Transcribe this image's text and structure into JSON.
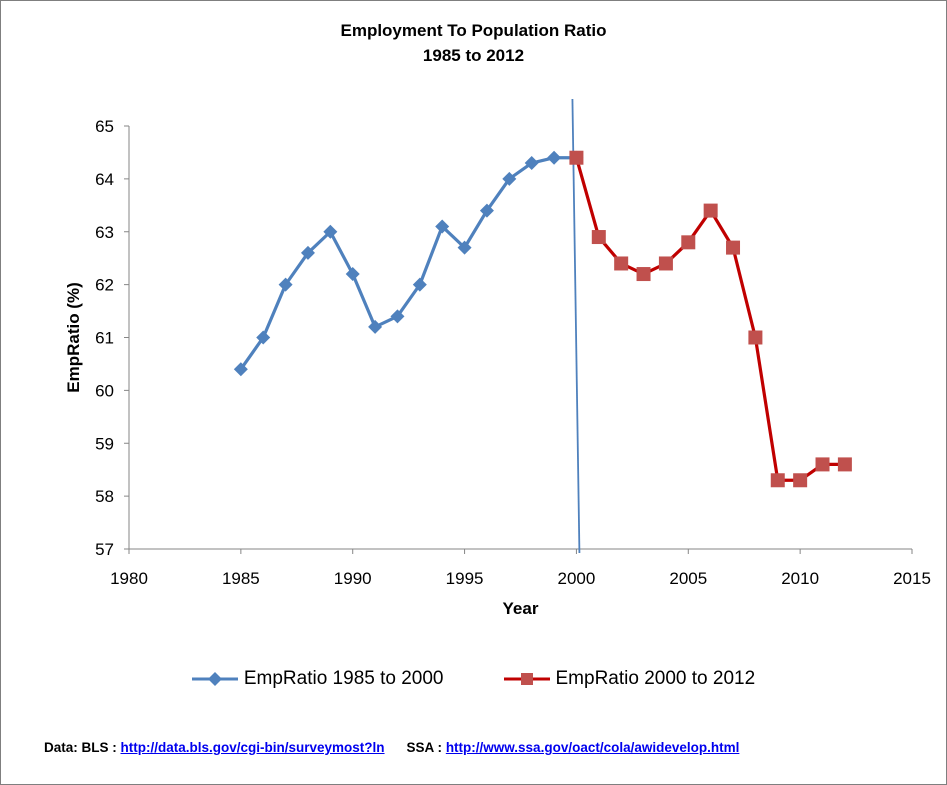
{
  "chart_data": {
    "type": "line",
    "title_lines": [
      "Employment To Population  Ratio",
      "1985 to 2012"
    ],
    "xlabel": "Year",
    "ylabel": "EmpRatio (%)",
    "xlim": [
      1980,
      2015
    ],
    "ylim": [
      57,
      65
    ],
    "x_ticks": [
      "1980",
      "1985",
      "1990",
      "1995",
      "2000",
      "2005",
      "2010",
      "2015"
    ],
    "y_ticks": [
      "57",
      "58",
      "59",
      "60",
      "61",
      "62",
      "63",
      "64",
      "65"
    ],
    "grid": false,
    "legend_position": "bottom",
    "divider_line_x": 2000,
    "series": [
      {
        "name": "EmpRatio 1985 to 2000",
        "color": "#4f81bd",
        "marker": "diamond",
        "x": [
          1985,
          1986,
          1987,
          1988,
          1989,
          1990,
          1991,
          1992,
          1993,
          1994,
          1995,
          1996,
          1997,
          1998,
          1999,
          2000
        ],
        "y": [
          60.4,
          61.0,
          62.0,
          62.6,
          63.0,
          62.2,
          61.2,
          61.4,
          62.0,
          63.1,
          62.7,
          63.4,
          64.0,
          64.3,
          64.4,
          64.4
        ]
      },
      {
        "name": "EmpRatio 2000 to 2012",
        "color": "#c00000",
        "marker_color": "#c0504d",
        "marker": "square",
        "x": [
          2000,
          2001,
          2002,
          2003,
          2004,
          2005,
          2006,
          2007,
          2008,
          2009,
          2010,
          2011,
          2012
        ],
        "y": [
          64.4,
          62.9,
          62.4,
          62.2,
          62.4,
          62.8,
          63.4,
          62.7,
          61.0,
          58.3,
          58.3,
          58.6,
          58.6
        ]
      }
    ]
  },
  "source": {
    "data_label": "Data:  BLS : ",
    "bls_link": "http://data.bls.gov/cgi-bin/surveymost?ln",
    "ssa_label": "SSA : ",
    "ssa_link": "http://www.ssa.gov/oact/cola/awidevelop.html"
  }
}
